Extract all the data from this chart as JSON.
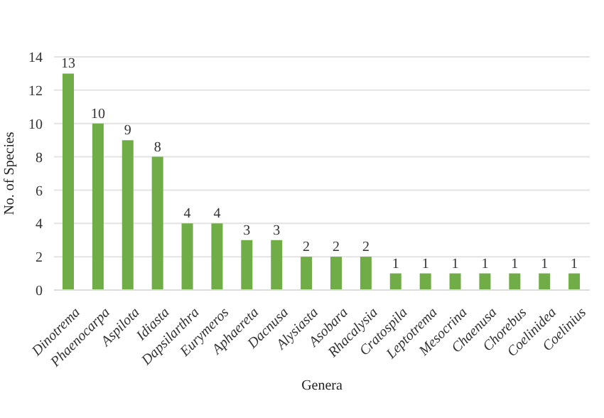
{
  "chart_data": {
    "type": "bar",
    "xlabel": "Genera",
    "ylabel": "No. of Species",
    "categories": [
      "Dinotrema",
      "Phaenocarpa",
      "Aspilota",
      "Idiasta",
      "Dapsilarthra",
      "Eurymeros",
      "Aphaereta",
      "Dacnusa",
      "Alysiasta",
      "Asobara",
      "Rhacalysia",
      "Cratospila",
      "Leptotrema",
      "Mesocrina",
      "Chaenusa",
      "Chorebus",
      "Coelinidea",
      "Coelinius"
    ],
    "values": [
      13,
      10,
      9,
      8,
      4,
      4,
      3,
      3,
      2,
      2,
      2,
      1,
      1,
      1,
      1,
      1,
      1,
      1
    ],
    "color": "#70ad47",
    "ylim": [
      0,
      14
    ],
    "yticks": [
      0,
      2,
      4,
      6,
      8,
      10,
      12,
      14
    ],
    "grid": "y",
    "data_labels": true
  }
}
